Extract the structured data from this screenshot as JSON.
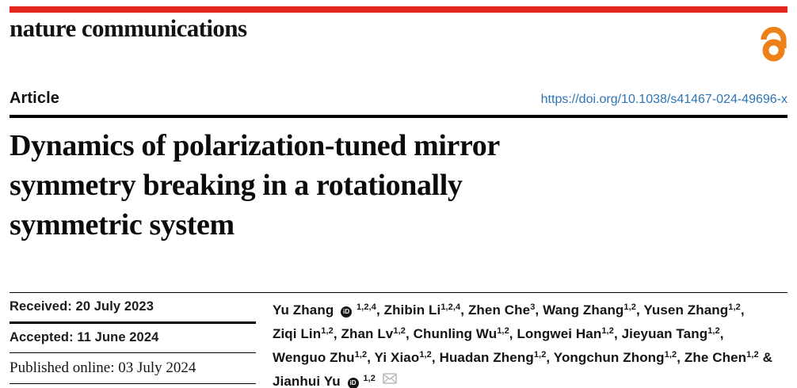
{
  "colors": {
    "masthead_red": "#e3271d",
    "open_access_orange": "#ed8017",
    "doi_blue": "#2e74b5"
  },
  "masthead": {
    "wordmark": "nature communications",
    "open_access_icon": "open-access-lock"
  },
  "article_bar": {
    "label": "Article",
    "doi": "https://doi.org/10.1038/s41467-024-49696-x"
  },
  "title": {
    "lines": [
      "Dynamics of polarization-tuned mirror",
      "symmetry breaking in a rotationally",
      "symmetric system"
    ]
  },
  "dates": {
    "received": "Received: 20 July 2023",
    "accepted": "Accepted: 11 June 2024",
    "published": "Published online: 03 July 2024"
  },
  "authors": {
    "orcid_label": "iD",
    "email_icon": "envelope",
    "list": [
      {
        "name": "Yu Zhang",
        "orcid": true,
        "sup": "1,2,4",
        "sep": ", "
      },
      {
        "name": "Zhibin Li",
        "sup": "1,2,4",
        "sep": ", "
      },
      {
        "name": "Zhen Che",
        "sup": "3",
        "sep": ", "
      },
      {
        "name": "Wang Zhang",
        "sup": "1,2",
        "sep": ", "
      },
      {
        "name": "Yusen Zhang",
        "sup": "1,2",
        "sep": ",",
        "br": true
      },
      {
        "name": "Ziqi Lin",
        "sup": "1,2",
        "sep": ", "
      },
      {
        "name": "Zhan Lv",
        "sup": "1,2",
        "sep": ", "
      },
      {
        "name": "Chunling Wu",
        "sup": "1,2",
        "sep": ", "
      },
      {
        "name": "Longwei Han",
        "sup": "1,2",
        "sep": ", "
      },
      {
        "name": "Jieyuan Tang",
        "sup": "1,2",
        "sep": ",",
        "br": true
      },
      {
        "name": "Wenguo Zhu",
        "sup": "1,2",
        "sep": ", "
      },
      {
        "name": "Yi Xiao",
        "sup": "1,2",
        "sep": ", "
      },
      {
        "name": "Huadan Zheng",
        "sup": "1,2",
        "sep": ", "
      },
      {
        "name": "Yongchun Zhong",
        "sup": "1,2",
        "sep": ", "
      },
      {
        "name": "Zhe Chen",
        "sup": "1,2",
        "sep": " &",
        "br": true
      },
      {
        "name": "Jianhui Yu",
        "orcid": true,
        "sup": "1,2",
        "email": true,
        "sep": ""
      }
    ]
  }
}
